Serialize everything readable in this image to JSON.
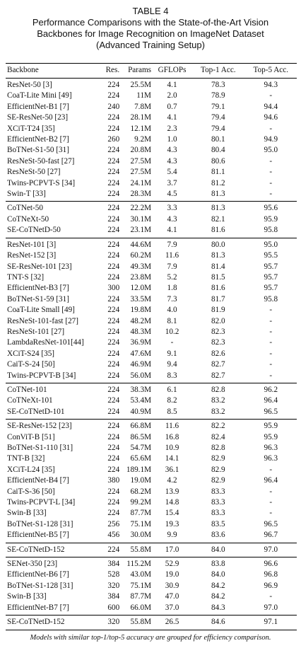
{
  "header": {
    "label": "TABLE 4",
    "title": "Performance Comparisons with the State-of-the-Art Vision Backbones for Image Recognition on ImageNet Dataset (Advanced Training Setup)"
  },
  "table": {
    "columns": [
      "Backbone",
      "Res.",
      "Params",
      "GFLOPs",
      "Top-1 Acc.",
      "Top-5 Acc."
    ],
    "groups": [
      {
        "highlight": false,
        "rows": [
          [
            "ResNet-50 [3]",
            "224",
            "25.5M",
            "4.1",
            "78.3",
            "94.3"
          ],
          [
            "CoaT-Lite Mini [49]",
            "224",
            "11M",
            "2.0",
            "78.9",
            "-"
          ],
          [
            "EfficientNet-B1 [7]",
            "240",
            "7.8M",
            "0.7",
            "79.1",
            "94.4"
          ],
          [
            "SE-ResNet-50 [23]",
            "224",
            "28.1M",
            "4.1",
            "79.4",
            "94.6"
          ],
          [
            "XCiT-T24 [35]",
            "224",
            "12.1M",
            "2.3",
            "79.4",
            "-"
          ],
          [
            "EfficientNet-B2 [7]",
            "260",
            "9.2M",
            "1.0",
            "80.1",
            "94.9"
          ],
          [
            "BoTNet-S1-50 [31]",
            "224",
            "20.8M",
            "4.3",
            "80.4",
            "95.0"
          ],
          [
            "ResNeSt-50-fast [27]",
            "224",
            "27.5M",
            "4.3",
            "80.6",
            "-"
          ],
          [
            "ResNeSt-50 [27]",
            "224",
            "27.5M",
            "5.4",
            "81.1",
            "-"
          ],
          [
            "Twins-PCPVT-S [34]",
            "224",
            "24.1M",
            "3.7",
            "81.2",
            "-"
          ],
          [
            "Swin-T [33]",
            "224",
            "28.3M",
            "4.5",
            "81.3",
            "-"
          ]
        ]
      },
      {
        "highlight": true,
        "rows": [
          [
            "CoTNet-50",
            "224",
            "22.2M",
            "3.3",
            "81.3",
            "95.6"
          ],
          [
            "CoTNeXt-50",
            "224",
            "30.1M",
            "4.3",
            "82.1",
            "95.9"
          ],
          [
            "SE-CoTNetD-50",
            "224",
            "23.1M",
            "4.1",
            "81.6",
            "95.8"
          ]
        ]
      },
      {
        "highlight": false,
        "rows": [
          [
            "ResNet-101 [3]",
            "224",
            "44.6M",
            "7.9",
            "80.0",
            "95.0"
          ],
          [
            "ResNet-152 [3]",
            "224",
            "60.2M",
            "11.6",
            "81.3",
            "95.5"
          ],
          [
            "SE-ResNet-101 [23]",
            "224",
            "49.3M",
            "7.9",
            "81.4",
            "95.7"
          ],
          [
            "TNT-S [32]",
            "224",
            "23.8M",
            "5.2",
            "81.5",
            "95.7"
          ],
          [
            "EfficientNet-B3 [7]",
            "300",
            "12.0M",
            "1.8",
            "81.6",
            "95.7"
          ],
          [
            "BoTNet-S1-59 [31]",
            "224",
            "33.5M",
            "7.3",
            "81.7",
            "95.8"
          ],
          [
            "CoaT-Lite Small [49]",
            "224",
            "19.8M",
            "4.0",
            "81.9",
            "-"
          ],
          [
            "ResNeSt-101-fast [27]",
            "224",
            "48.2M",
            "8.1",
            "82.0",
            "-"
          ],
          [
            "ResNeSt-101 [27]",
            "224",
            "48.3M",
            "10.2",
            "82.3",
            "-"
          ],
          [
            "LambdaResNet-101[44]",
            "224",
            "36.9M",
            "-",
            "82.3",
            "-"
          ],
          [
            "XCiT-S24 [35]",
            "224",
            "47.6M",
            "9.1",
            "82.6",
            "-"
          ],
          [
            "CaiT-S-24 [50]",
            "224",
            "46.9M",
            "9.4",
            "82.7",
            "-"
          ],
          [
            "Twins-PCPVT-B [34]",
            "224",
            "56.0M",
            "8.3",
            "82.7",
            "-"
          ]
        ]
      },
      {
        "highlight": true,
        "rows": [
          [
            "CoTNet-101",
            "224",
            "38.3M",
            "6.1",
            "82.8",
            "96.2"
          ],
          [
            "CoTNeXt-101",
            "224",
            "53.4M",
            "8.2",
            "83.2",
            "96.4"
          ],
          [
            "SE-CoTNetD-101",
            "224",
            "40.9M",
            "8.5",
            "83.2",
            "96.5"
          ]
        ]
      },
      {
        "highlight": false,
        "rows": [
          [
            "SE-ResNet-152 [23]",
            "224",
            "66.8M",
            "11.6",
            "82.2",
            "95.9"
          ],
          [
            "ConViT-B [51]",
            "224",
            "86.5M",
            "16.8",
            "82.4",
            "95.9"
          ],
          [
            "BoTNet-S1-110 [31]",
            "224",
            "54.7M",
            "10.9",
            "82.8",
            "96.3"
          ],
          [
            "TNT-B [32]",
            "224",
            "65.6M",
            "14.1",
            "82.9",
            "96.3"
          ],
          [
            "XCiT-L24 [35]",
            "224",
            "189.1M",
            "36.1",
            "82.9",
            "-"
          ],
          [
            "EfficientNet-B4 [7]",
            "380",
            "19.0M",
            "4.2",
            "82.9",
            "96.4"
          ],
          [
            "CaiT-S-36 [50]",
            "224",
            "68.2M",
            "13.9",
            "83.3",
            "-"
          ],
          [
            "Twins-PCPVT-L [34]",
            "224",
            "99.2M",
            "14.8",
            "83.3",
            "-"
          ],
          [
            "Swin-B [33]",
            "224",
            "87.7M",
            "15.4",
            "83.3",
            "-"
          ],
          [
            "BoTNet-S1-128 [31]",
            "256",
            "75.1M",
            "19.3",
            "83.5",
            "96.5"
          ],
          [
            "EfficientNet-B5 [7]",
            "456",
            "30.0M",
            "9.9",
            "83.6",
            "96.7"
          ]
        ]
      },
      {
        "highlight": true,
        "rows": [
          [
            "SE-CoTNetD-152",
            "224",
            "55.8M",
            "17.0",
            "84.0",
            "97.0"
          ]
        ]
      },
      {
        "highlight": false,
        "rows": [
          [
            "SENet-350 [23]",
            "384",
            "115.2M",
            "52.9",
            "83.8",
            "96.6"
          ],
          [
            "EfficientNet-B6 [7]",
            "528",
            "43.0M",
            "19.0",
            "84.0",
            "96.8"
          ],
          [
            "BoTNet-S1-128 [31]",
            "320",
            "75.1M",
            "30.9",
            "84.2",
            "96.9"
          ],
          [
            "Swin-B [33]",
            "384",
            "87.7M",
            "47.0",
            "84.2",
            "-"
          ],
          [
            "EfficientNet-B7 [7]",
            "600",
            "66.0M",
            "37.0",
            "84.3",
            "97.0"
          ]
        ]
      },
      {
        "highlight": true,
        "rows": [
          [
            "SE-CoTNetD-152",
            "320",
            "55.8M",
            "26.5",
            "84.6",
            "97.1"
          ]
        ]
      }
    ]
  },
  "footnote": "Models with similar top-1/top-5 accuracy are grouped for efficiency comparison."
}
